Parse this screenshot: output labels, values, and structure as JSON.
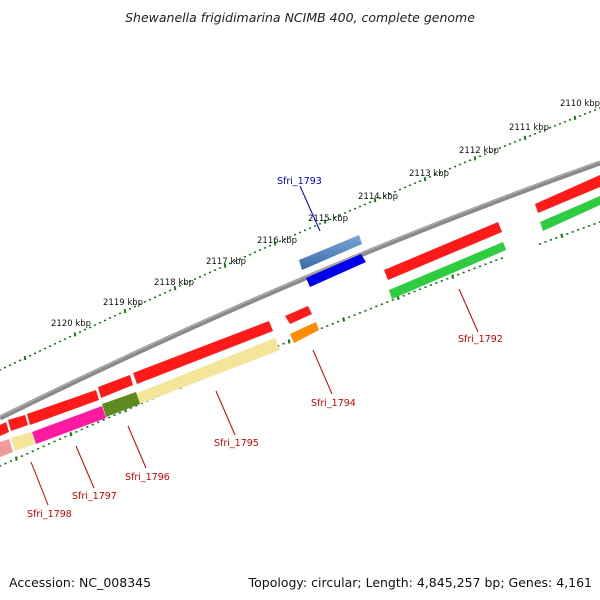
{
  "header": {
    "title": "Shewanella frigidimarina NCIMB 400, complete genome"
  },
  "footer": {
    "accession": "Accession: NC_008345",
    "stats": "Topology: circular; Length: 4,845,257 bp; Genes: 4,161"
  },
  "colors": {
    "backbone": "#8a8a8a",
    "ruler": "#1a7a1a",
    "forward_cds": "#ff0000",
    "reverse_gene": "#2db82d",
    "label_red": "#cc0000",
    "label_blue": "#0000cc"
  },
  "ruler": {
    "tick_labels": [
      "2110 kbp",
      "2111 kbp",
      "2112 kbp",
      "2113 kbp",
      "2114 kbp",
      "2115 kbp",
      "2116 kbp",
      "2117 kbp",
      "2118 kbp",
      "2119 kbp",
      "2120 kbp"
    ]
  },
  "genes": [
    {
      "label": "Sfri_1792",
      "color_name": "red"
    },
    {
      "label": "Sfri_1793",
      "color_name": "blue"
    },
    {
      "label": "Sfri_1794",
      "color_name": "red"
    },
    {
      "label": "Sfri_1795",
      "color_name": "red"
    },
    {
      "label": "Sfri_1796",
      "color_name": "red"
    },
    {
      "label": "Sfri_1797",
      "color_name": "red"
    },
    {
      "label": "Sfri_1798",
      "color_name": "red"
    }
  ]
}
